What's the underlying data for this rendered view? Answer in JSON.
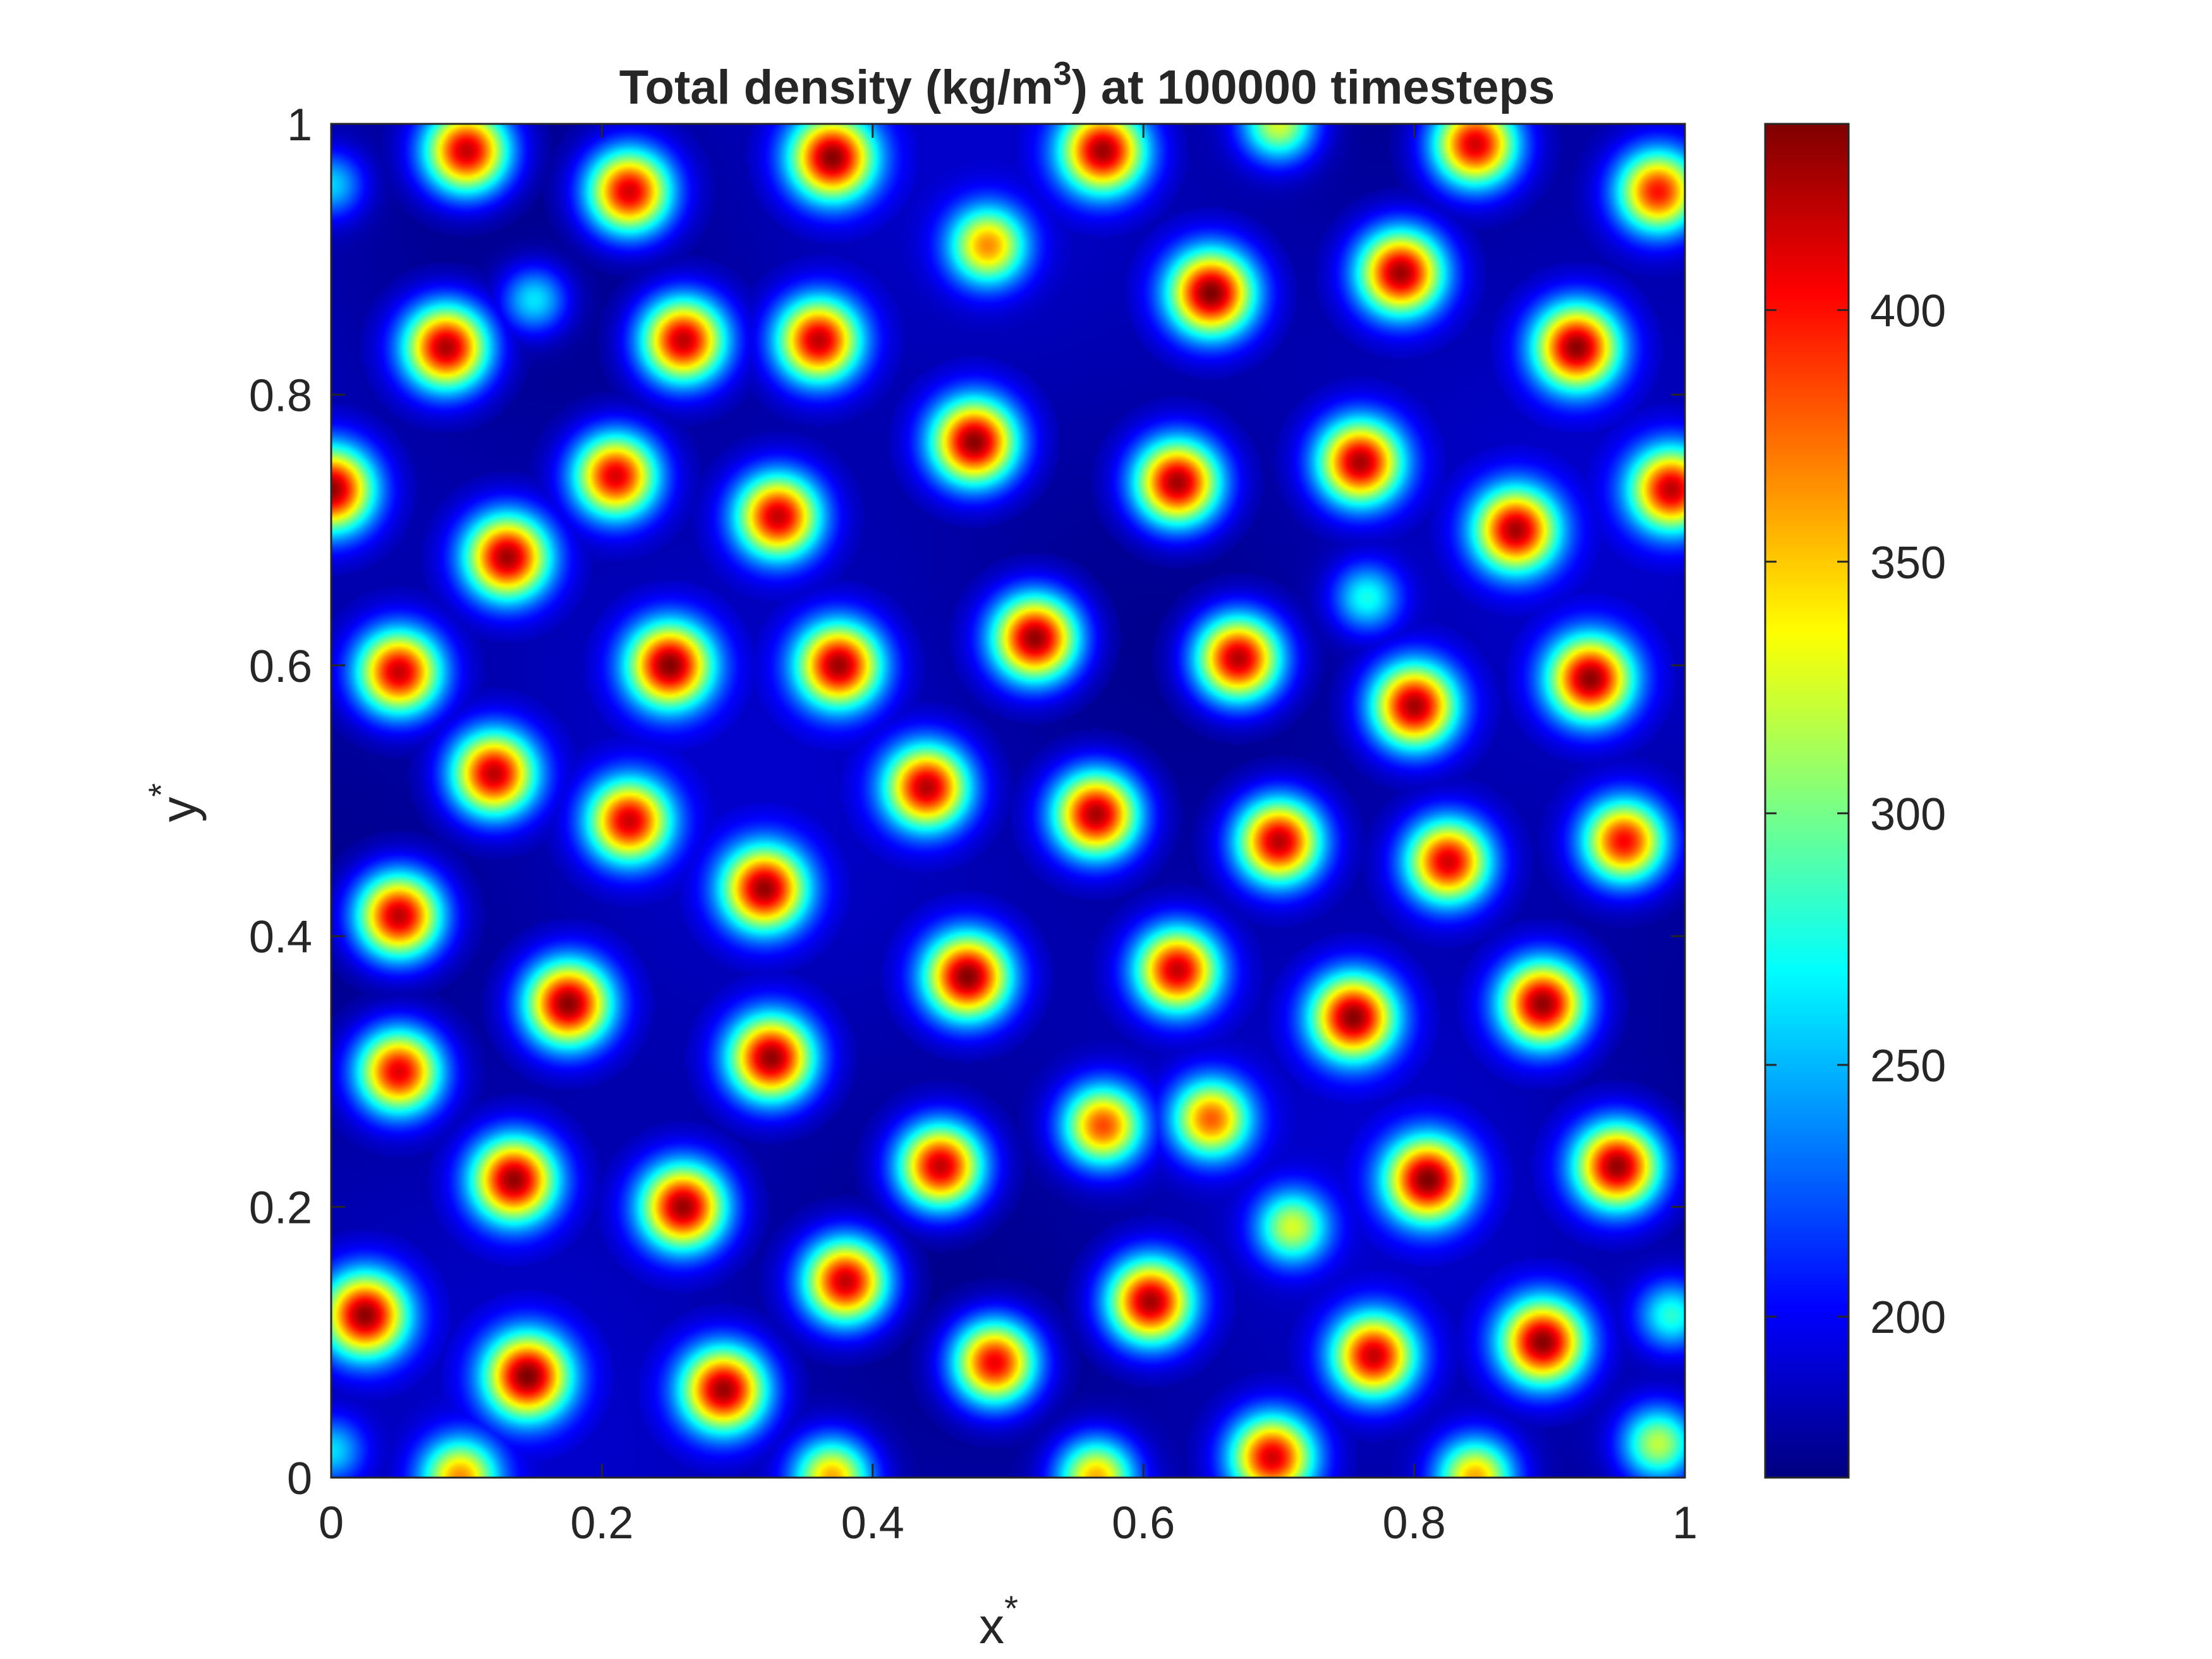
{
  "chart_data": {
    "type": "heatmap",
    "title": {
      "prefix": "Total density (kg/m",
      "superscript": "3",
      "suffix": ") at 100000 timesteps"
    },
    "xlabel": {
      "text": "x",
      "superscript": "*"
    },
    "ylabel": {
      "text": "y",
      "superscript": "*"
    },
    "xlim": [
      0,
      1
    ],
    "ylim": [
      0,
      1
    ],
    "xticks": [
      0,
      0.2,
      0.4,
      0.6,
      0.8,
      1
    ],
    "xtick_labels": [
      "0",
      "0.2",
      "0.4",
      "0.6",
      "0.8",
      "1"
    ],
    "yticks": [
      0,
      0.2,
      0.4,
      0.6,
      0.8,
      1
    ],
    "ytick_labels": [
      "0",
      "0.2",
      "0.4",
      "0.6",
      "0.8",
      "1"
    ],
    "colormap": "jet",
    "colorbar": {
      "range": [
        168,
        437
      ],
      "ticks": [
        200,
        250,
        300,
        350,
        400
      ],
      "tick_labels": [
        "200",
        "250",
        "300",
        "350",
        "400"
      ]
    },
    "background_density": 180,
    "droplets": [
      {
        "x": 0.1,
        "y": 0.98,
        "peak": 425
      },
      {
        "x": 0.22,
        "y": 0.95,
        "peak": 420
      },
      {
        "x": 0.37,
        "y": 0.975,
        "peak": 430
      },
      {
        "x": 0.57,
        "y": 0.98,
        "peak": 425
      },
      {
        "x": 0.7,
        "y": 1.0,
        "peak": 330
      },
      {
        "x": 0.845,
        "y": 0.985,
        "peak": 420
      },
      {
        "x": 0.98,
        "y": 0.95,
        "peak": 400
      },
      {
        "x": 0.0,
        "y": 0.955,
        "peak": 260
      },
      {
        "x": 0.485,
        "y": 0.91,
        "peak": 360
      },
      {
        "x": 0.15,
        "y": 0.87,
        "peak": 270
      },
      {
        "x": 0.65,
        "y": 0.875,
        "peak": 437
      },
      {
        "x": 0.79,
        "y": 0.89,
        "peak": 430
      },
      {
        "x": 0.085,
        "y": 0.835,
        "peak": 430
      },
      {
        "x": 0.26,
        "y": 0.84,
        "peak": 425
      },
      {
        "x": 0.36,
        "y": 0.84,
        "peak": 420
      },
      {
        "x": 0.92,
        "y": 0.835,
        "peak": 430
      },
      {
        "x": 0.475,
        "y": 0.765,
        "peak": 435
      },
      {
        "x": 0.21,
        "y": 0.74,
        "peak": 415
      },
      {
        "x": 0.625,
        "y": 0.735,
        "peak": 432
      },
      {
        "x": 0.76,
        "y": 0.75,
        "peak": 425
      },
      {
        "x": 0.0,
        "y": 0.73,
        "peak": 430
      },
      {
        "x": 0.99,
        "y": 0.73,
        "peak": 415
      },
      {
        "x": 0.33,
        "y": 0.71,
        "peak": 418
      },
      {
        "x": 0.875,
        "y": 0.7,
        "peak": 420
      },
      {
        "x": 0.13,
        "y": 0.68,
        "peak": 428
      },
      {
        "x": 0.765,
        "y": 0.65,
        "peak": 275
      },
      {
        "x": 0.52,
        "y": 0.62,
        "peak": 437
      },
      {
        "x": 0.05,
        "y": 0.595,
        "peak": 420
      },
      {
        "x": 0.25,
        "y": 0.6,
        "peak": 430
      },
      {
        "x": 0.375,
        "y": 0.6,
        "peak": 425
      },
      {
        "x": 0.67,
        "y": 0.605,
        "peak": 430
      },
      {
        "x": 0.8,
        "y": 0.57,
        "peak": 428
      },
      {
        "x": 0.93,
        "y": 0.59,
        "peak": 428
      },
      {
        "x": 0.12,
        "y": 0.52,
        "peak": 422
      },
      {
        "x": 0.22,
        "y": 0.485,
        "peak": 412
      },
      {
        "x": 0.44,
        "y": 0.51,
        "peak": 420
      },
      {
        "x": 0.565,
        "y": 0.49,
        "peak": 430
      },
      {
        "x": 0.7,
        "y": 0.47,
        "peak": 425
      },
      {
        "x": 0.825,
        "y": 0.455,
        "peak": 415
      },
      {
        "x": 0.955,
        "y": 0.47,
        "peak": 405
      },
      {
        "x": 0.05,
        "y": 0.415,
        "peak": 428
      },
      {
        "x": 0.32,
        "y": 0.435,
        "peak": 425
      },
      {
        "x": 0.47,
        "y": 0.37,
        "peak": 435
      },
      {
        "x": 0.625,
        "y": 0.375,
        "peak": 418
      },
      {
        "x": 0.175,
        "y": 0.35,
        "peak": 435
      },
      {
        "x": 0.755,
        "y": 0.34,
        "peak": 430
      },
      {
        "x": 0.895,
        "y": 0.35,
        "peak": 432
      },
      {
        "x": 0.05,
        "y": 0.3,
        "peak": 415
      },
      {
        "x": 0.325,
        "y": 0.31,
        "peak": 432
      },
      {
        "x": 0.57,
        "y": 0.26,
        "peak": 385
      },
      {
        "x": 0.65,
        "y": 0.265,
        "peak": 375
      },
      {
        "x": 0.135,
        "y": 0.22,
        "peak": 430
      },
      {
        "x": 0.45,
        "y": 0.23,
        "peak": 425
      },
      {
        "x": 0.26,
        "y": 0.2,
        "peak": 430
      },
      {
        "x": 0.81,
        "y": 0.22,
        "peak": 430
      },
      {
        "x": 0.95,
        "y": 0.23,
        "peak": 432
      },
      {
        "x": 0.71,
        "y": 0.185,
        "peak": 320
      },
      {
        "x": 0.025,
        "y": 0.12,
        "peak": 430
      },
      {
        "x": 0.38,
        "y": 0.145,
        "peak": 425
      },
      {
        "x": 0.605,
        "y": 0.13,
        "peak": 430
      },
      {
        "x": 0.99,
        "y": 0.12,
        "peak": 280
      },
      {
        "x": 0.145,
        "y": 0.075,
        "peak": 430
      },
      {
        "x": 0.29,
        "y": 0.065,
        "peak": 428
      },
      {
        "x": 0.49,
        "y": 0.085,
        "peak": 415
      },
      {
        "x": 0.77,
        "y": 0.09,
        "peak": 415
      },
      {
        "x": 0.895,
        "y": 0.1,
        "peak": 432
      },
      {
        "x": 0.98,
        "y": 0.025,
        "peak": 320
      },
      {
        "x": 0.695,
        "y": 0.015,
        "peak": 415
      },
      {
        "x": 0.095,
        "y": 0.0,
        "peak": 360
      },
      {
        "x": 0.37,
        "y": 0.0,
        "peak": 360
      },
      {
        "x": 0.565,
        "y": 0.0,
        "peak": 360
      },
      {
        "x": 0.845,
        "y": 0.0,
        "peak": 360
      },
      {
        "x": 0.0,
        "y": 0.02,
        "peak": 260
      }
    ]
  }
}
